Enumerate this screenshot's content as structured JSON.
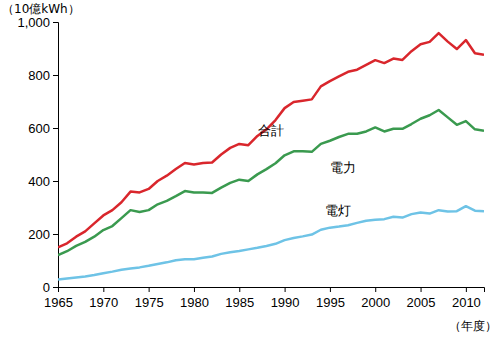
{
  "chart_data": {
    "type": "line",
    "y_label": "（10億kWh）",
    "x_label": "（年度）",
    "x": [
      1965,
      1966,
      1967,
      1968,
      1969,
      1970,
      1971,
      1972,
      1973,
      1974,
      1975,
      1976,
      1977,
      1978,
      1979,
      1980,
      1981,
      1982,
      1983,
      1984,
      1985,
      1986,
      1987,
      1988,
      1989,
      1990,
      1991,
      1992,
      1993,
      1994,
      1995,
      1996,
      1997,
      1998,
      1999,
      2000,
      2001,
      2002,
      2003,
      2004,
      2005,
      2006,
      2007,
      2008,
      2009,
      2010,
      2011,
      2012
    ],
    "series": [
      {
        "name": "合計",
        "color": "#d9262c",
        "values": [
          150,
          165,
          190,
          210,
          240,
          270,
          290,
          320,
          360,
          357,
          370,
          400,
          420,
          445,
          468,
          462,
          468,
          470,
          500,
          525,
          540,
          535,
          570,
          595,
          630,
          675,
          698,
          703,
          708,
          757,
          777,
          795,
          812,
          820,
          838,
          856,
          845,
          862,
          857,
          890,
          916,
          925,
          958,
          926,
          898,
          932,
          882,
          876
        ]
      },
      {
        "name": "電力",
        "color": "#3a9a4f",
        "values": [
          120,
          135,
          155,
          170,
          190,
          215,
          230,
          260,
          290,
          283,
          290,
          312,
          325,
          343,
          362,
          357,
          357,
          355,
          375,
          393,
          405,
          400,
          425,
          445,
          467,
          497,
          512,
          512,
          510,
          540,
          552,
          566,
          578,
          578,
          587,
          602,
          587,
          597,
          597,
          615,
          635,
          648,
          668,
          640,
          612,
          626,
          595,
          590
        ]
      },
      {
        "name": "電灯",
        "color": "#6ec3e6",
        "values": [
          28,
          32,
          36,
          40,
          45,
          52,
          58,
          65,
          70,
          74,
          80,
          87,
          93,
          101,
          105,
          105,
          110,
          115,
          125,
          131,
          136,
          142,
          148,
          155,
          163,
          177,
          185,
          191,
          198,
          216,
          224,
          228,
          233,
          242,
          250,
          254,
          256,
          265,
          262,
          275,
          281,
          277,
          290,
          285,
          286,
          305,
          288,
          286
        ]
      }
    ],
    "xlim": [
      1965,
      2012
    ],
    "xticks": [
      1965,
      1970,
      1975,
      1980,
      1985,
      1990,
      1995,
      2000,
      2005,
      2010
    ],
    "ylim": [
      0,
      1000
    ],
    "yticks": [
      0,
      200,
      400,
      600,
      800,
      {
        "value": 1000,
        "label": "1,000"
      }
    ],
    "grid": false
  }
}
